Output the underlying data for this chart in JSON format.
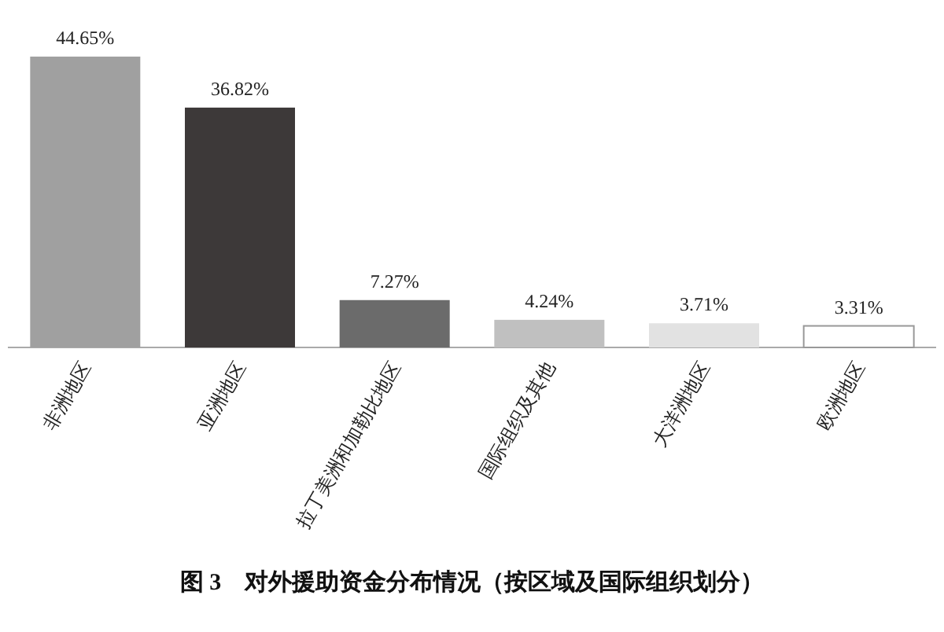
{
  "chart_data": {
    "type": "bar",
    "title": "图 3　对外援助资金分布情况（按区域及国际组织划分）",
    "categories": [
      "非洲地区",
      "亚洲地区",
      "拉丁美洲和加勒比地区",
      "国际组织及其他",
      "大洋洲地区",
      "欧洲地区"
    ],
    "values": [
      44.65,
      36.82,
      7.27,
      4.24,
      3.71,
      3.31
    ],
    "value_labels": [
      "44.65%",
      "36.82%",
      "7.27%",
      "4.24%",
      "3.71%",
      "3.31%"
    ],
    "colors": [
      "#a0a0a0",
      "#3d3939",
      "#6b6b6b",
      "#c0c0c0",
      "#e2e2e2",
      "#ffffff"
    ],
    "grid": false
  }
}
